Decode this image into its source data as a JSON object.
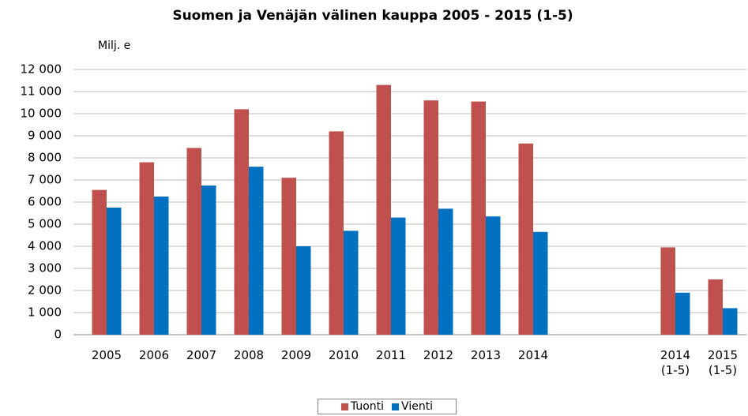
{
  "chart_data": {
    "type": "bar",
    "title": "Suomen ja Venäjän välinen kauppa 2005  - 2015  (1-5)",
    "ylabel": "Milj. e",
    "categories": [
      "2005",
      "2006",
      "2007",
      "2008",
      "2009",
      "2010",
      "2011",
      "2012",
      "2013",
      "2014",
      null,
      null,
      "2014 (1-5)",
      "2015 (1-5)"
    ],
    "series": [
      {
        "name": "Tuonti",
        "color": "#c0504d",
        "values": [
          6550,
          7800,
          8450,
          10200,
          7100,
          9200,
          11300,
          10600,
          10550,
          8650,
          null,
          null,
          3950,
          2500
        ]
      },
      {
        "name": "Vienti",
        "color": "#0070c0",
        "values": [
          5750,
          6250,
          6750,
          7600,
          4000,
          4700,
          5300,
          5700,
          5350,
          4650,
          null,
          null,
          1900,
          1200
        ]
      }
    ],
    "ylim": [
      0,
      12000
    ],
    "yticks": [
      0,
      {
        "value": 1000,
        "label": "1 000"
      },
      {
        "value": 2000,
        "label": "2 000"
      },
      {
        "value": 3000,
        "label": "3 000"
      },
      {
        "value": 4000,
        "label": "4 000"
      },
      {
        "value": 5000,
        "label": "5 000"
      },
      {
        "value": 6000,
        "label": "6 000"
      },
      {
        "value": 7000,
        "label": "7 000"
      },
      {
        "value": 8000,
        "label": "8 000"
      },
      {
        "value": 9000,
        "label": "9 000"
      },
      {
        "value": 10000,
        "label": "10 000"
      },
      {
        "value": 11000,
        "label": "11 000"
      },
      {
        "value": 12000,
        "label": "12 000"
      }
    ],
    "grid": true,
    "legend": "bottom"
  }
}
